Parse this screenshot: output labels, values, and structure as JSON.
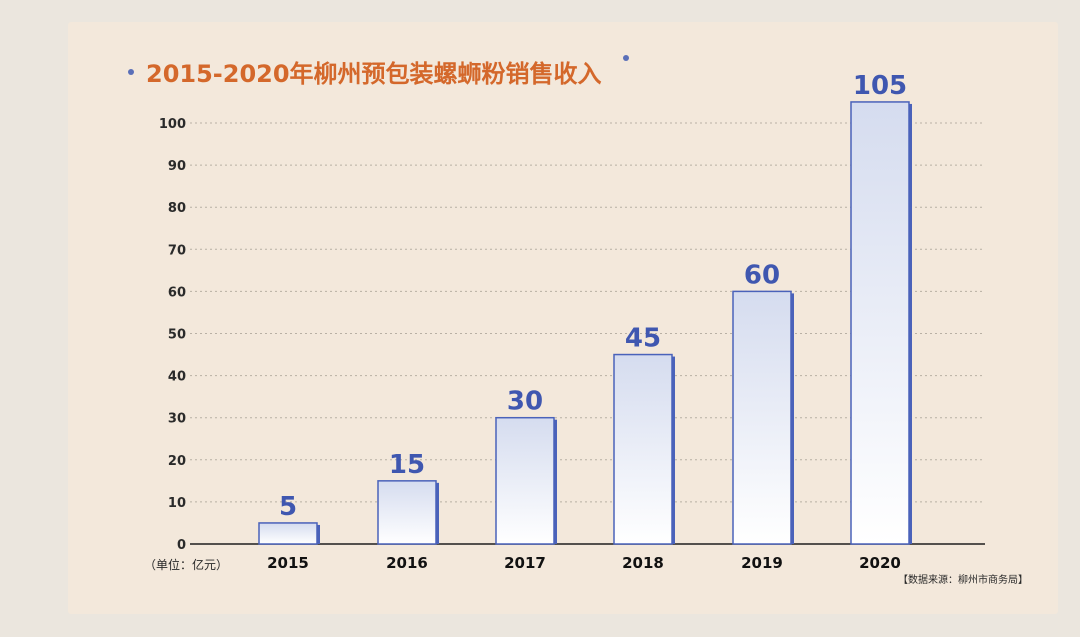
{
  "chart_data": {
    "type": "bar",
    "title": "2015-2020年柳州预包装螺蛳粉销售收入",
    "unit_label": "（单位：亿元）",
    "source": "【数据来源：柳州市商务局】",
    "categories": [
      "2015",
      "2016",
      "2017",
      "2018",
      "2019",
      "2020"
    ],
    "values": [
      5,
      15,
      30,
      45,
      60,
      105
    ],
    "y_ticks": [
      "0",
      "10",
      "20",
      "30",
      "40",
      "50",
      "60",
      "70",
      "80",
      "90",
      "100"
    ],
    "ylim": [
      0,
      105
    ],
    "grid": true
  },
  "colors": {
    "paper": "#f3e8db",
    "background": "#ebe6de",
    "title": "#d4682b",
    "bullet": "#5a6fb8",
    "bar_stroke": "#4a62ba",
    "bar_fill_top": "#d5dcef",
    "bar_fill_bottom": "#ffffff",
    "value_label": "#3f57b0",
    "axis_text": "#2a2a2a",
    "grid": "#b8b0a4"
  }
}
